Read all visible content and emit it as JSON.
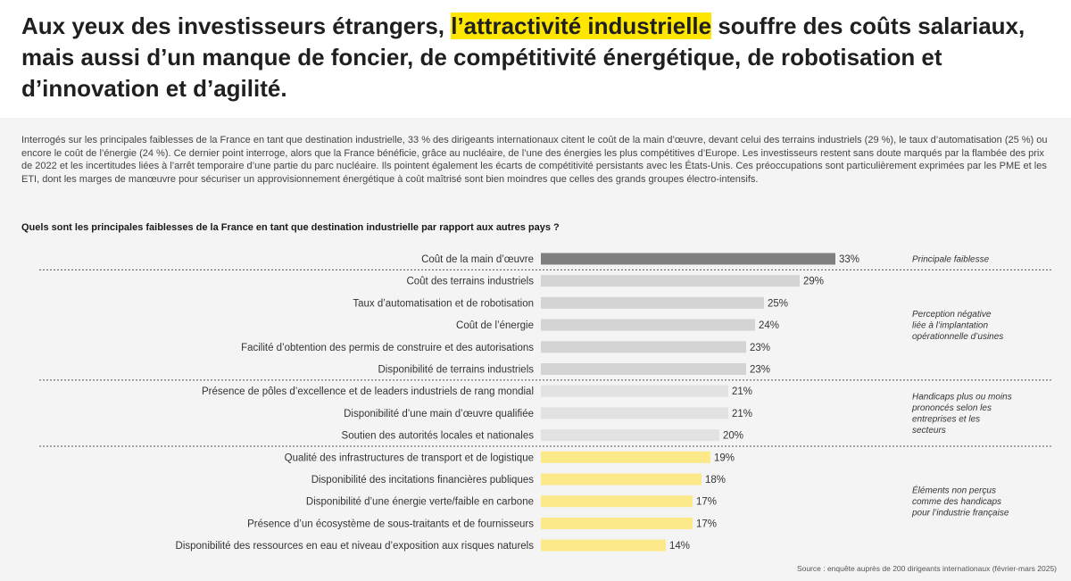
{
  "header": {
    "title_before": "Aux yeux des investisseurs étrangers, ",
    "title_highlight": "l’attractivité industrielle",
    "title_after": " souffre des coûts salariaux, mais aussi d’un manque de foncier, de compétitivité énergétique, de robotisation et d’innovation et d’agilité."
  },
  "intro": "Interrogés sur les principales faiblesses de la France en tant que destination industrielle, 33 % des dirigeants internationaux citent le coût de la main d’œuvre, devant celui des terrains industriels (29 %), le taux d’automatisation (25 %) ou encore le coût de l’énergie (24 %). Ce dernier point interroge, alors que la France bénéficie, grâce au nucléaire, de l’une des énergies les plus compétitives d’Europe. Les investisseurs restent sans doute marqués par la flambée des prix de 2022 et les incertitudes liées à l’arrêt temporaire d’une partie du parc nucléaire. Ils pointent également les écarts de compétitivité persistants avec les États-Unis. Ces préoccupations sont particulièrement exprimées par les PME et les ETI, dont les marges de manœuvre pour sécuriser un approvisionnement énergétique à coût maîtrisé sont bien moindres que celles des grands groupes électro-intensifs.",
  "question": "Quels sont les principales faiblesses de la France en tant que destination industrielle par rapport aux autres pays ?",
  "source": "Source : enquête auprès de 200 dirigeants internationaux (février-mars 2025)",
  "colors": {
    "dark": "#7f7f7f",
    "gray": "#d4d4d4",
    "lightgray": "#e2e2e2",
    "yellow": "#fbe98a",
    "dotted": "#555555"
  },
  "chart_data": {
    "type": "bar",
    "orientation": "horizontal",
    "value_suffix": "%",
    "xlim": [
      0,
      40
    ],
    "categories": [
      "Coût de la main d’œuvre",
      "Coût des terrains industriels",
      "Taux d’automatisation et de robotisation",
      "Coût de l’énergie",
      "Facilité d’obtention des permis de construire et des autorisations",
      "Disponibilité de terrains industriels",
      "Présence de pôles d’excellence et de leaders industriels de rang mondial",
      "Disponibilité d’une main d’œuvre qualifiée",
      "Soutien des autorités locales et nationales",
      "Qualité des infrastructures de transport et de logistique",
      "Disponibilité des incitations financières publiques",
      "Disponibilité d’une énergie verte/faible en carbone",
      "Présence d’un écosystème de sous-traitants et de fournisseurs",
      "Disponibilité des ressources en eau et niveau d’exposition aux risques naturels"
    ],
    "values": [
      33,
      29,
      25,
      24,
      23,
      23,
      21,
      21,
      20,
      19,
      18,
      17,
      17,
      14
    ],
    "bar_color_keys": [
      "dark",
      "gray",
      "gray",
      "gray",
      "gray",
      "gray",
      "lightgray",
      "lightgray",
      "lightgray",
      "yellow",
      "yellow",
      "yellow",
      "yellow",
      "yellow"
    ],
    "groups": [
      {
        "start": 0,
        "end": 0,
        "note": [
          "Principale faiblesse"
        ]
      },
      {
        "start": 1,
        "end": 5,
        "note": [
          "Perception négative",
          "liée à l’implantation",
          "opérationnelle d’usines"
        ]
      },
      {
        "start": 6,
        "end": 8,
        "note": [
          "Handicaps plus ou moins",
          "prononcés selon les",
          "entreprises et les",
          "secteurs"
        ]
      },
      {
        "start": 9,
        "end": 13,
        "note": [
          "Éléments non perçus",
          "comme des handicaps",
          "pour l’industrie française"
        ]
      }
    ]
  }
}
